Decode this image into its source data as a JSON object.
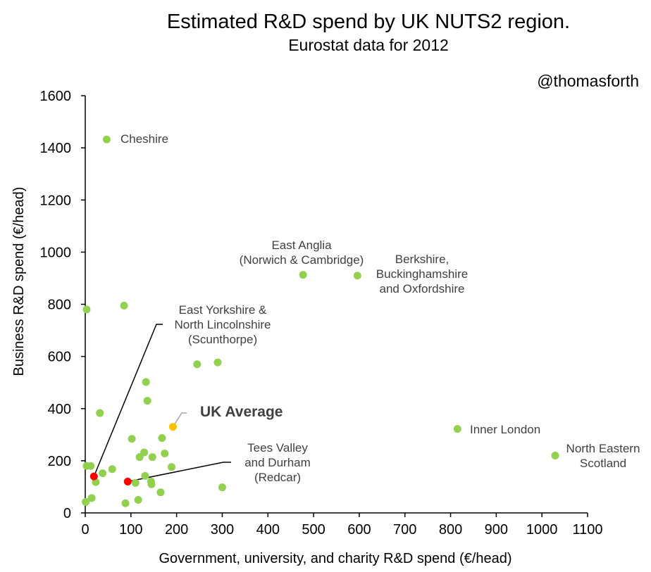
{
  "chart_data": {
    "type": "scatter",
    "title": "Estimated R&D spend by UK NUTS2 region.",
    "subtitle": "Eurostat data for 2012",
    "credit": "@thomasforth",
    "xlabel": "Government, university, and charity R&D spend (€/head)",
    "ylabel": "Business R&D spend (€/head)",
    "xlim": [
      0,
      1100
    ],
    "ylim": [
      0,
      1600
    ],
    "xticks": [
      "0",
      "100",
      "200",
      "300",
      "400",
      "500",
      "600",
      "700",
      "800",
      "900",
      "1000",
      "1100"
    ],
    "yticks": [
      "0",
      "200",
      "400",
      "600",
      "800",
      "1000",
      "1200",
      "1400",
      "1600"
    ],
    "grid": false,
    "colors": {
      "regions": "#92d050",
      "highlight": "#ff0000",
      "average": "#ffc000",
      "leader": "#000000",
      "average_leader": "#a6a6a6",
      "label_text": "#404040"
    },
    "points": [
      {
        "x": 47,
        "y": 1432,
        "label": "Cheshire",
        "group": "region"
      },
      {
        "x": 477,
        "y": 913,
        "label": "East Anglia (Norwich & Cambridge)",
        "group": "region"
      },
      {
        "x": 596,
        "y": 910,
        "label": "Berkshire, Buckinghamshire and Oxfordshire",
        "group": "region"
      },
      {
        "x": 815,
        "y": 322,
        "label": "Inner London",
        "group": "region"
      },
      {
        "x": 1029,
        "y": 220,
        "label": "North Eastern Scotland",
        "group": "region"
      },
      {
        "x": 19,
        "y": 140,
        "label": "East Yorkshire & North Lincolnshire (Scunthorpe)",
        "group": "highlight"
      },
      {
        "x": 93,
        "y": 120,
        "label": "Tees Valley and Durham (Redcar)",
        "group": "highlight"
      },
      {
        "x": 192,
        "y": 330,
        "label": "UK Average",
        "group": "average"
      },
      {
        "x": 3,
        "y": 780,
        "group": "region"
      },
      {
        "x": 85,
        "y": 795,
        "group": "region"
      },
      {
        "x": 245,
        "y": 570,
        "group": "region"
      },
      {
        "x": 290,
        "y": 577,
        "group": "region"
      },
      {
        "x": 133,
        "y": 502,
        "group": "region"
      },
      {
        "x": 136,
        "y": 430,
        "group": "region"
      },
      {
        "x": 32,
        "y": 383,
        "group": "region"
      },
      {
        "x": 102,
        "y": 284,
        "group": "region"
      },
      {
        "x": 168,
        "y": 287,
        "group": "region"
      },
      {
        "x": 129,
        "y": 232,
        "group": "region"
      },
      {
        "x": 174,
        "y": 228,
        "group": "region"
      },
      {
        "x": 119,
        "y": 214,
        "group": "region"
      },
      {
        "x": 147,
        "y": 214,
        "group": "region"
      },
      {
        "x": 3,
        "y": 180,
        "group": "region"
      },
      {
        "x": 12,
        "y": 180,
        "group": "region"
      },
      {
        "x": 59,
        "y": 168,
        "group": "region"
      },
      {
        "x": 189,
        "y": 176,
        "group": "region"
      },
      {
        "x": 38,
        "y": 152,
        "group": "region"
      },
      {
        "x": 131,
        "y": 142,
        "group": "region"
      },
      {
        "x": 23,
        "y": 118,
        "group": "region"
      },
      {
        "x": 110,
        "y": 115,
        "group": "region"
      },
      {
        "x": 144,
        "y": 120,
        "group": "region"
      },
      {
        "x": 145,
        "y": 110,
        "group": "region"
      },
      {
        "x": 300,
        "y": 98,
        "group": "region"
      },
      {
        "x": 165,
        "y": 79,
        "group": "region"
      },
      {
        "x": 14,
        "y": 57,
        "group": "region"
      },
      {
        "x": 116,
        "y": 50,
        "group": "region"
      },
      {
        "x": 1,
        "y": 42,
        "group": "region"
      },
      {
        "x": 88,
        "y": 37,
        "group": "region"
      }
    ],
    "annotations": [
      {
        "target": 0,
        "lines": [
          "Cheshire"
        ],
        "bold": false
      },
      {
        "target": 1,
        "lines": [
          "East Anglia",
          "(Norwich & Cambridge)"
        ],
        "bold": false
      },
      {
        "target": 2,
        "lines": [
          "Berkshire,",
          "Buckinghamshire",
          "and Oxfordshire"
        ],
        "bold": false
      },
      {
        "target": 3,
        "lines": [
          "Inner London"
        ],
        "bold": false
      },
      {
        "target": 4,
        "lines": [
          "North Eastern",
          "Scotland"
        ],
        "bold": false
      },
      {
        "target": 5,
        "lines": [
          "East Yorkshire &",
          "North Lincolnshire",
          "(Scunthorpe)"
        ],
        "bold": false
      },
      {
        "target": 6,
        "lines": [
          "Tees Valley",
          "and Durham",
          "(Redcar)"
        ],
        "bold": false
      },
      {
        "target": 7,
        "lines": [
          "UK Average"
        ],
        "bold": true
      }
    ]
  }
}
